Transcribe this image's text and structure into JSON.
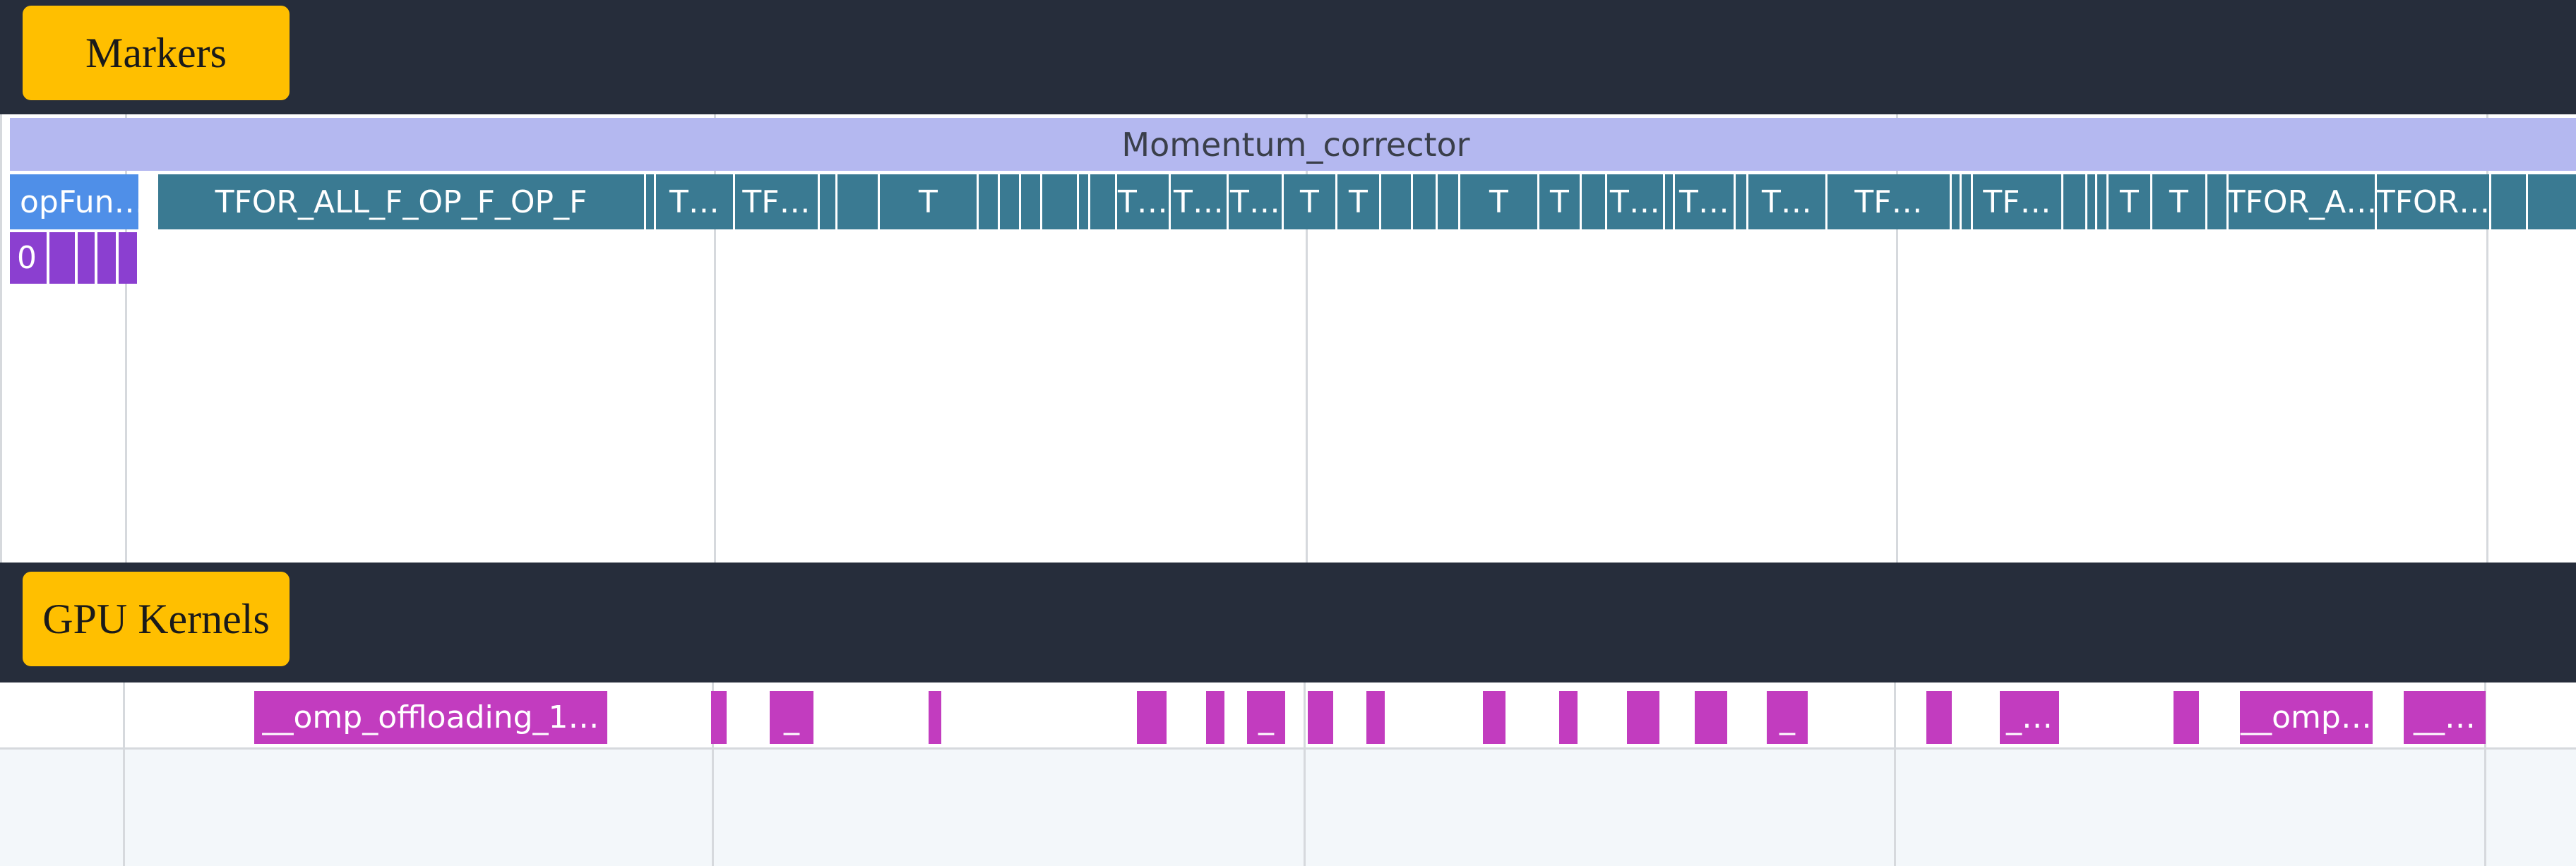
{
  "sections": {
    "markers": {
      "label": "Markers"
    },
    "kernels": {
      "label": "GPU Kernels"
    }
  },
  "colors": {
    "band": "#262d3b",
    "label": "#ffbf00",
    "root_marker": "#b4b8f0",
    "marker": "#3a7a92",
    "first_marker": "#4f8fe8",
    "sub_marker": "#8b3fd0",
    "kernel": "#c23cbf",
    "kernel_area_bg": "#f3f7fa"
  },
  "markers_track": {
    "root": {
      "label": "Momentum_corrector"
    },
    "level1": [
      {
        "label": "opFun…"
      },
      {
        "label": "TFOR_ALL_F_OP_F_OP_F"
      },
      {
        "label": ""
      },
      {
        "label": "T…"
      },
      {
        "label": "TF…"
      },
      {
        "label": ""
      },
      {
        "label": ""
      },
      {
        "label": "T"
      },
      {
        "label": ""
      },
      {
        "label": ""
      },
      {
        "label": ""
      },
      {
        "label": ""
      },
      {
        "label": ""
      },
      {
        "label": ""
      },
      {
        "label": "T…"
      },
      {
        "label": "T…"
      },
      {
        "label": "T…"
      },
      {
        "label": "T"
      },
      {
        "label": "T"
      },
      {
        "label": ""
      },
      {
        "label": ""
      },
      {
        "label": ""
      },
      {
        "label": "T"
      },
      {
        "label": "T"
      },
      {
        "label": ""
      },
      {
        "label": "T…"
      },
      {
        "label": ""
      },
      {
        "label": "T…"
      },
      {
        "label": ""
      },
      {
        "label": "T…"
      },
      {
        "label": "TF…"
      },
      {
        "label": ""
      },
      {
        "label": ""
      },
      {
        "label": "TF…"
      },
      {
        "label": ""
      },
      {
        "label": ""
      },
      {
        "label": ""
      },
      {
        "label": "T"
      },
      {
        "label": "T"
      },
      {
        "label": ""
      },
      {
        "label": "TFOR_A…"
      },
      {
        "label": "TFOR…"
      },
      {
        "label": ""
      },
      {
        "label": ""
      }
    ],
    "level2": [
      {
        "label": "0"
      },
      {
        "label": ""
      },
      {
        "label": ""
      },
      {
        "label": ""
      },
      {
        "label": ""
      }
    ]
  },
  "kernels_track": {
    "kernels": [
      {
        "label": "__omp_offloading_1…"
      },
      {
        "label": ""
      },
      {
        "label": "_"
      },
      {
        "label": ""
      },
      {
        "label": ""
      },
      {
        "label": ""
      },
      {
        "label": "_"
      },
      {
        "label": ""
      },
      {
        "label": ""
      },
      {
        "label": ""
      },
      {
        "label": ""
      },
      {
        "label": ""
      },
      {
        "label": ""
      },
      {
        "label": "_"
      },
      {
        "label": ""
      },
      {
        "label": "_…"
      },
      {
        "label": ""
      },
      {
        "label": "__omp…"
      },
      {
        "label": "__…"
      }
    ]
  }
}
